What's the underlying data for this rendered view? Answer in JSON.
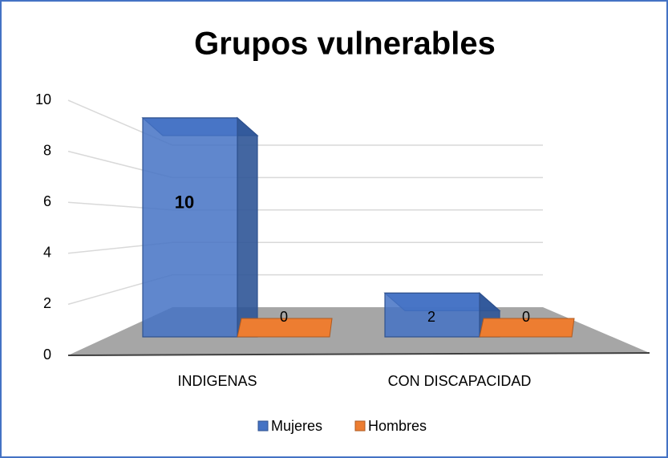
{
  "chart_data": {
    "type": "bar3d",
    "title": "Grupos vulnerables",
    "categories": [
      "INDIGENAS",
      "CON DISCAPACIDAD"
    ],
    "series": [
      {
        "name": "Mujeres",
        "color": "#4472c4",
        "values": [
          10,
          2
        ]
      },
      {
        "name": "Hombres",
        "color": "#ed7d31",
        "values": [
          0,
          0
        ]
      }
    ],
    "ylim": [
      0,
      10
    ],
    "yticks": [
      0,
      2,
      4,
      6,
      8,
      10
    ],
    "grid": true,
    "legend": "bottom"
  }
}
